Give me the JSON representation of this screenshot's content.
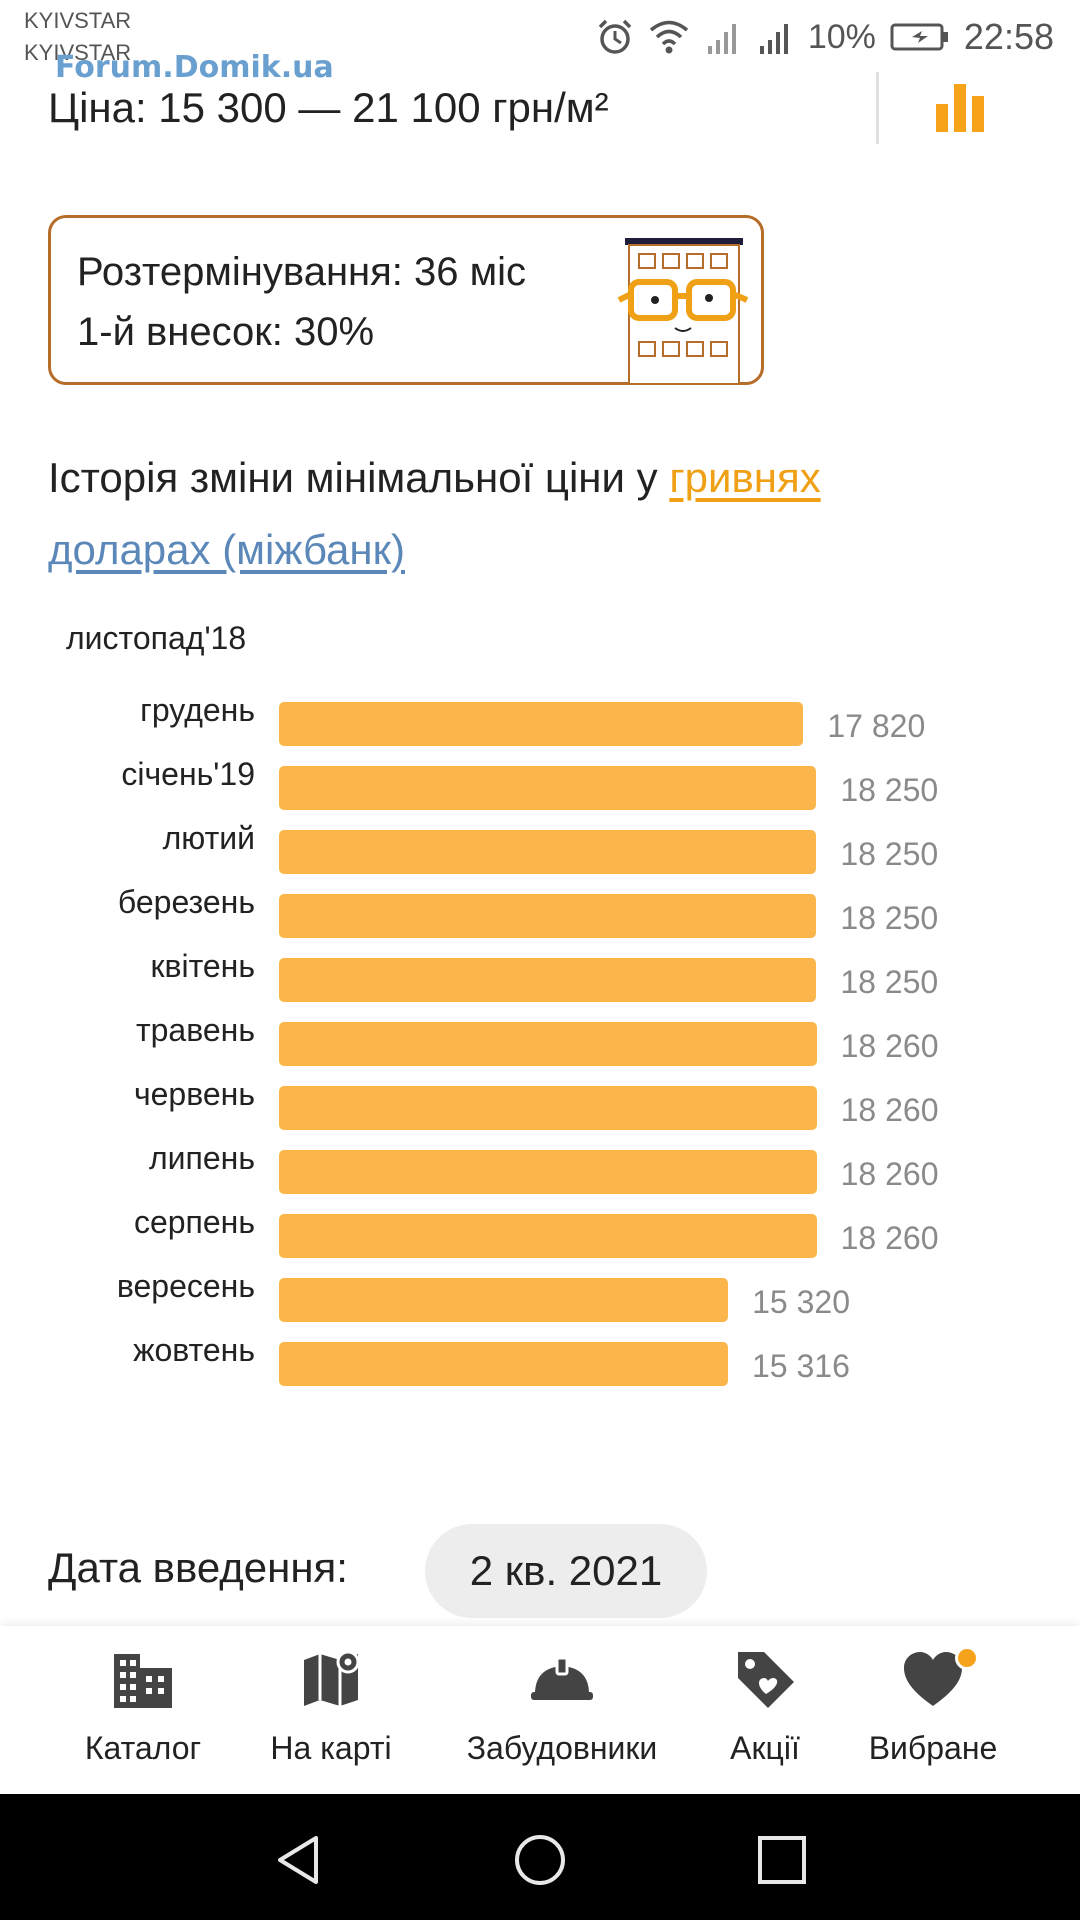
{
  "status_bar": {
    "carrier_1": "KYIVSTAR",
    "carrier_2": "KYIVSTAR",
    "battery": "10%",
    "time": "22:58"
  },
  "watermark": "Forum.Domik.ua",
  "price": {
    "text": "Ціна: 15 300 — 21 100 грн/м²"
  },
  "terms": {
    "installment": "Розтермінування: 36 міс",
    "down_payment": "1-й внесок: 30%"
  },
  "history": {
    "title": "Історія зміни мінімальної ціни у",
    "link_uah": "гривнях",
    "link_usd": "доларах (міжбанк)"
  },
  "chart_data": {
    "type": "bar",
    "orientation": "horizontal",
    "categories": [
      "листопад'18",
      "грудень",
      "січень'19",
      "лютий",
      "березень",
      "квітень",
      "травень",
      "червень",
      "липень",
      "серпень",
      "вересень",
      "жовтень"
    ],
    "values": [
      null,
      17820,
      18250,
      18250,
      18250,
      18250,
      18260,
      18260,
      18260,
      18260,
      15320,
      15316
    ],
    "value_labels": [
      "",
      "17 820",
      "18 250",
      "18 250",
      "18 250",
      "18 250",
      "18 260",
      "18 260",
      "18 260",
      "18 260",
      "15 320",
      "15 316"
    ],
    "bar_color": "#fcb54a"
  },
  "delivery": {
    "label": "Дата введення:",
    "value": "2 кв. 2021"
  },
  "bottom_nav": {
    "items": [
      {
        "label": "Каталог",
        "icon": "building-icon"
      },
      {
        "label": "На карті",
        "icon": "map-icon"
      },
      {
        "label": "Забудовники",
        "icon": "hardhat-icon"
      },
      {
        "label": "Акції",
        "icon": "tag-icon"
      },
      {
        "label": "Вибране",
        "icon": "heart-icon"
      }
    ]
  },
  "colors": {
    "accent_orange": "#f0a015",
    "link_blue": "#5b88b8",
    "box_border": "#b66d2a"
  }
}
